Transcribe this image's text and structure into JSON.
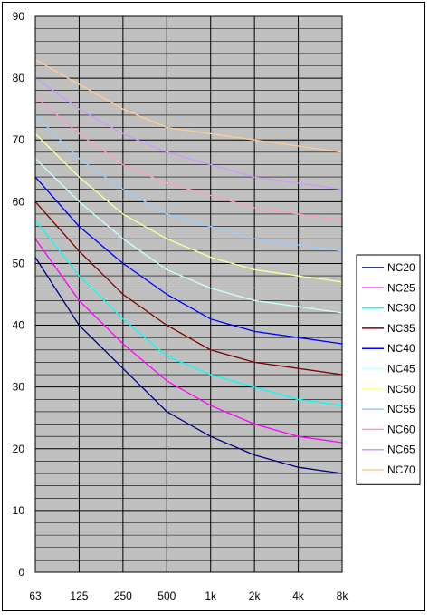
{
  "chart_data": {
    "type": "line",
    "title": "",
    "xlabel": "",
    "ylabel": "",
    "categories": [
      "63",
      "125",
      "250",
      "500",
      "1k",
      "2k",
      "4k",
      "8k"
    ],
    "y_ticks": [
      0,
      10,
      20,
      30,
      40,
      50,
      60,
      70,
      80,
      90
    ],
    "ylim": [
      0,
      90
    ],
    "grid": true,
    "grid_minor_step": 2,
    "plot_background": "#c0c0c0",
    "legend_position": "right",
    "series": [
      {
        "name": "NC20",
        "color": "#000080",
        "values": [
          51,
          40,
          33,
          26,
          22,
          19,
          17,
          16
        ]
      },
      {
        "name": "NC25",
        "color": "#ff00ff",
        "values": [
          54,
          44,
          37,
          31,
          27,
          24,
          22,
          21
        ]
      },
      {
        "name": "NC30",
        "color": "#00ffff",
        "values": [
          57,
          48,
          41,
          35,
          32,
          30,
          28,
          27
        ]
      },
      {
        "name": "NC35",
        "color": "#800000",
        "values": [
          60,
          52,
          45,
          40,
          36,
          34,
          33,
          32
        ]
      },
      {
        "name": "NC40",
        "color": "#0000ff",
        "values": [
          64,
          56,
          50,
          45,
          41,
          39,
          38,
          37
        ]
      },
      {
        "name": "NC45",
        "color": "#ccffff",
        "values": [
          67,
          60,
          54,
          49,
          46,
          44,
          43,
          42
        ]
      },
      {
        "name": "NC50",
        "color": "#ffff99",
        "values": [
          71,
          64,
          58,
          54,
          51,
          49,
          48,
          47
        ]
      },
      {
        "name": "NC55",
        "color": "#99ccff",
        "values": [
          74,
          67,
          62,
          58,
          56,
          54,
          53,
          52
        ]
      },
      {
        "name": "NC60",
        "color": "#ff99cc",
        "values": [
          77,
          71,
          66,
          63,
          61,
          59,
          58,
          57
        ]
      },
      {
        "name": "NC65",
        "color": "#cc99ff",
        "values": [
          80,
          75,
          71,
          68,
          66,
          64,
          63,
          62
        ]
      },
      {
        "name": "NC70",
        "color": "#ffcc99",
        "values": [
          83,
          79,
          75,
          72,
          71,
          70,
          69,
          68
        ]
      }
    ]
  }
}
